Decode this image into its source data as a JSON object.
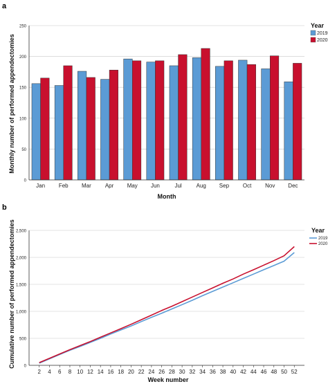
{
  "panels": {
    "a": "a",
    "b": "b"
  },
  "chart_data": [
    {
      "type": "bar",
      "panel": "a",
      "categories": [
        "Jan",
        "Feb",
        "Mar",
        "Apr",
        "May",
        "Jun",
        "Jul",
        "Aug",
        "Sep",
        "Oct",
        "Nov",
        "Dec"
      ],
      "series": [
        {
          "name": "2019",
          "color": "#5b9bd5",
          "values": [
            156,
            153,
            176,
            163,
            196,
            191,
            185,
            198,
            184,
            194,
            180,
            159
          ]
        },
        {
          "name": "2020",
          "color": "#c8102e",
          "values": [
            165,
            185,
            166,
            178,
            193,
            193,
            203,
            213,
            193,
            187,
            201,
            189
          ]
        }
      ],
      "xlabel": "Month",
      "ylabel": "Monthly number of performed appendectomies",
      "ylim": [
        0,
        250
      ],
      "yticks": [
        "0",
        "50",
        "100",
        "150",
        "200",
        "250"
      ],
      "legend_title": "Year",
      "legend_position": "top-right",
      "grid": true
    },
    {
      "type": "line",
      "panel": "b",
      "x": [
        2,
        4,
        6,
        8,
        10,
        12,
        14,
        16,
        18,
        20,
        22,
        24,
        26,
        28,
        30,
        32,
        34,
        36,
        38,
        40,
        42,
        44,
        46,
        48,
        50,
        52
      ],
      "xticks": [
        "2",
        "4",
        "6",
        "8",
        "10",
        "12",
        "14",
        "16",
        "18",
        "20",
        "22",
        "24",
        "26",
        "28",
        "30",
        "32",
        "34",
        "36",
        "38",
        "40",
        "42",
        "44",
        "46",
        "48",
        "50",
        "52"
      ],
      "series": [
        {
          "name": "2019",
          "color": "#5b9bd5",
          "values": [
            40,
            120,
            200,
            280,
            350,
            425,
            500,
            580,
            655,
            730,
            810,
            890,
            965,
            1045,
            1125,
            1205,
            1290,
            1370,
            1450,
            1530,
            1610,
            1690,
            1770,
            1850,
            1930,
            2090
          ]
        },
        {
          "name": "2020",
          "color": "#c8102e",
          "values": [
            50,
            130,
            210,
            290,
            365,
            440,
            520,
            600,
            680,
            760,
            845,
            930,
            1015,
            1095,
            1180,
            1265,
            1350,
            1435,
            1520,
            1600,
            1690,
            1770,
            1855,
            1940,
            2030,
            2200
          ]
        }
      ],
      "xlabel": "Week number",
      "ylabel": "Cumulative number of performed appendectomies",
      "ylim": [
        0,
        2500
      ],
      "yticks": [
        "0",
        "500",
        "1,000",
        "1,500",
        "2,000",
        "2,500"
      ],
      "legend_title": "Year",
      "legend_position": "top-right",
      "grid": true
    }
  ]
}
